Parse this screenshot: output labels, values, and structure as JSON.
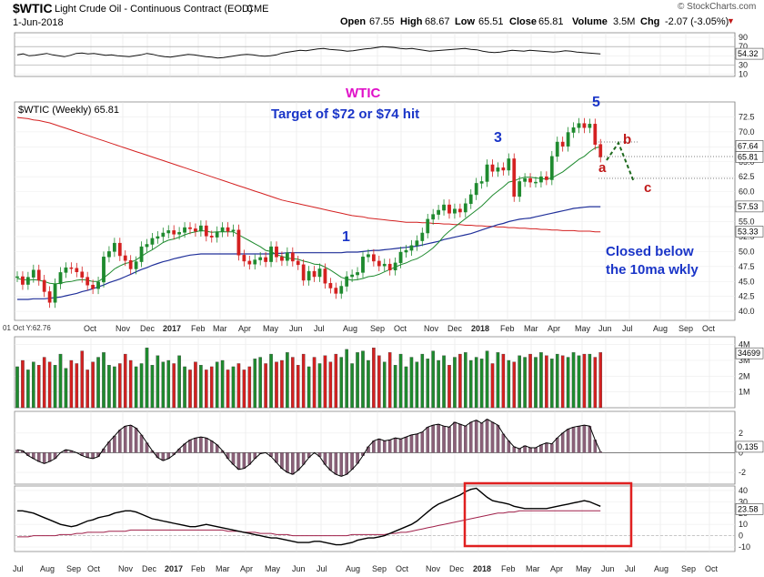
{
  "header": {
    "symbol": "$WTIC",
    "name": "Light Crude Oil - Continuous Contract (EOD)",
    "exchange": "CME",
    "date": "1-Jun-2018",
    "brand": "© StockCharts.com",
    "open_label": "Open",
    "open": "67.55",
    "high_label": "High",
    "high": "68.67",
    "low_label": "Low",
    "low": "65.51",
    "close_label": "Close",
    "close": "65.81",
    "volume_label": "Volume",
    "volume": "3.5M",
    "chg_label": "Chg",
    "chg": "-2.07 (-3.05%)"
  },
  "colors": {
    "up": "#1e8a2e",
    "down": "#d42020",
    "ma10": "#1e8a2e",
    "ma40": "#20309a",
    "ma200": "#d42020",
    "hist": "#8a6078",
    "annot": "#1a35c8",
    "wtic": "#e010c8",
    "wave": "#c01818",
    "box": "#e02020"
  },
  "chart_data": [
    {
      "type": "line",
      "panel": "rsi",
      "yticks": [
        10,
        30,
        50,
        70,
        90
      ],
      "last_value": "54.32",
      "ylim": [
        5,
        100
      ],
      "values": [
        52,
        54,
        50,
        51,
        53,
        55,
        52,
        50,
        48,
        51,
        55,
        56,
        54,
        55,
        53,
        51,
        52,
        50,
        49,
        48,
        50,
        52,
        55,
        53,
        50,
        48,
        47,
        49,
        51,
        53,
        52,
        50,
        48,
        47,
        45,
        46,
        48,
        50,
        52,
        53,
        52,
        50,
        49,
        50,
        52,
        56,
        58,
        60,
        62,
        61,
        63,
        65,
        66,
        64,
        63,
        62,
        60,
        61,
        63,
        65,
        66,
        68,
        70,
        69,
        68,
        66,
        65,
        66,
        64,
        62,
        60,
        61,
        62,
        63,
        64,
        65,
        66,
        64,
        63,
        60,
        58,
        57,
        58,
        60,
        62,
        61,
        60,
        62,
        61,
        60,
        59,
        58,
        59,
        61,
        60,
        58,
        57,
        56,
        55,
        54
      ]
    },
    {
      "type": "candlestick",
      "panel": "price",
      "label": "$WTIC (Weekly) 65.81",
      "yticks": [
        40,
        42.5,
        45,
        47.5,
        50,
        52.5,
        55,
        57.5,
        60,
        62.5,
        65,
        67.5,
        70,
        72.5
      ],
      "ylim": [
        38.5,
        75
      ],
      "last_labels": {
        "close": "65.81",
        "high": "67.64",
        "ma40": "57.53",
        "ma200": "53.33"
      },
      "close": [
        45.8,
        44.5,
        45.7,
        46.9,
        45.2,
        43.3,
        41.5,
        44.6,
        46.5,
        47.3,
        47.2,
        46.6,
        45.7,
        44.4,
        43.8,
        44.9,
        49.1,
        50.0,
        51.4,
        49.3,
        48.5,
        47.1,
        48.3,
        50.8,
        51.2,
        52.2,
        52.5,
        53.1,
        53.5,
        52.9,
        53.2,
        54.0,
        53.8,
        53.4,
        54.3,
        52.6,
        52.4,
        53.3,
        54.0,
        53.4,
        53.6,
        49.4,
        48.4,
        47.9,
        48.6,
        49.0,
        48.3,
        50.8,
        49.1,
        48.5,
        49.8,
        48.4,
        47.8,
        45.2,
        46.7,
        45.8,
        47.1,
        44.7,
        43.9,
        43.0,
        44.2,
        45.8,
        46.1,
        46.5,
        49.1,
        49.5,
        48.4,
        47.6,
        47.9,
        46.9,
        48.1,
        49.9,
        50.2,
        51.0,
        51.8,
        53.1,
        55.4,
        56.2,
        56.9,
        57.8,
        56.4,
        57.1,
        56.6,
        58.0,
        59.5,
        61.4,
        61.7,
        64.5,
        63.4,
        64.0,
        63.6,
        65.5,
        59.2,
        61.7,
        62.2,
        61.6,
        61.6,
        62.5,
        62.0,
        65.9,
        68.3,
        67.6,
        69.9,
        70.7,
        71.4,
        70.7,
        71.3,
        67.9,
        65.8
      ],
      "high_low_note": "high/low approximated from candle wicks",
      "ma10": [
        45.5,
        45.3,
        45.2,
        45.3,
        45.2,
        45.0,
        44.7,
        44.6,
        44.7,
        44.9,
        45.0,
        45.2,
        45.3,
        45.2,
        45.0,
        45.0,
        45.6,
        46.3,
        47.1,
        47.6,
        48.0,
        48.2,
        48.6,
        49.2,
        49.8,
        50.3,
        50.9,
        51.5,
        51.9,
        52.1,
        52.4,
        52.8,
        53.1,
        53.3,
        53.5,
        53.4,
        53.2,
        53.3,
        53.3,
        53.3,
        53.3,
        52.8,
        52.3,
        51.8,
        51.3,
        50.8,
        50.2,
        50.0,
        49.5,
        49.2,
        48.9,
        48.8,
        48.7,
        48.4,
        48.2,
        47.9,
        47.8,
        47.4,
        46.9,
        46.3,
        45.7,
        45.4,
        45.2,
        45.3,
        45.5,
        45.8,
        45.9,
        46.2,
        46.6,
        47.0,
        47.4,
        47.8,
        48.1,
        48.5,
        48.8,
        49.3,
        49.9,
        50.6,
        51.5,
        52.6,
        53.4,
        54.1,
        54.8,
        55.5,
        56.2,
        56.9,
        57.6,
        58.5,
        59.4,
        60.1,
        60.8,
        61.6,
        61.8,
        62.2,
        62.4,
        62.4,
        62.3,
        62.2,
        62.1,
        62.3,
        62.8,
        63.3,
        64.0,
        64.7,
        65.4,
        65.9,
        66.7,
        67.3,
        67.5
      ],
      "ma40": [
        42.0,
        42.0,
        42.0,
        42.1,
        42.1,
        42.1,
        42.2,
        42.3,
        42.4,
        42.6,
        42.8,
        43.0,
        43.3,
        43.5,
        43.8,
        44.1,
        44.4,
        44.8,
        45.1,
        45.4,
        45.8,
        46.2,
        46.6,
        47.0,
        47.3,
        47.7,
        48.0,
        48.3,
        48.5,
        48.8,
        49.0,
        49.2,
        49.4,
        49.5,
        49.6,
        49.6,
        49.6,
        49.6,
        49.6,
        49.6,
        49.6,
        49.6,
        49.6,
        49.6,
        49.6,
        49.6,
        49.6,
        49.6,
        49.7,
        49.7,
        49.8,
        49.8,
        49.8,
        49.8,
        49.8,
        49.8,
        49.8,
        49.8,
        49.8,
        49.8,
        49.8,
        49.9,
        49.9,
        49.9,
        50.0,
        50.1,
        50.2,
        50.2,
        50.3,
        50.4,
        50.5,
        50.6,
        50.7,
        50.8,
        50.9,
        51.1,
        51.3,
        51.5,
        51.7,
        52.0,
        52.2,
        52.4,
        52.6,
        52.8,
        53.0,
        53.3,
        53.6,
        53.9,
        54.2,
        54.5,
        54.7,
        55.0,
        55.2,
        55.4,
        55.5,
        55.6,
        55.8,
        56.0,
        56.2,
        56.4,
        56.6,
        56.8,
        57.0,
        57.2,
        57.3,
        57.4,
        57.5,
        57.5,
        57.5
      ],
      "ma200": [
        72.4,
        72.3,
        72.2,
        72.0,
        71.9,
        71.7,
        71.5,
        71.2,
        70.9,
        70.6,
        70.3,
        70.0,
        69.7,
        69.4,
        69.1,
        68.8,
        68.5,
        68.2,
        67.9,
        67.6,
        67.3,
        67.0,
        66.7,
        66.4,
        66.1,
        65.8,
        65.5,
        65.2,
        64.9,
        64.6,
        64.3,
        64.0,
        63.7,
        63.4,
        63.1,
        62.8,
        62.5,
        62.2,
        61.9,
        61.6,
        61.3,
        61.0,
        60.7,
        60.4,
        60.1,
        59.8,
        59.5,
        59.2,
        58.9,
        58.6,
        58.4,
        58.2,
        58.0,
        57.8,
        57.6,
        57.4,
        57.2,
        57.0,
        56.8,
        56.6,
        56.4,
        56.2,
        56.0,
        55.9,
        55.8,
        55.6,
        55.5,
        55.4,
        55.3,
        55.2,
        55.1,
        55.0,
        54.9,
        54.9,
        54.9,
        54.8,
        54.8,
        54.7,
        54.7,
        54.6,
        54.6,
        54.5,
        54.5,
        54.4,
        54.4,
        54.3,
        54.3,
        54.2,
        54.2,
        54.1,
        54.1,
        54.0,
        54.0,
        53.9,
        53.9,
        53.8,
        53.8,
        53.7,
        53.7,
        53.6,
        53.6,
        53.5,
        53.5,
        53.5,
        53.4,
        53.4,
        53.4,
        53.3,
        53.3
      ],
      "annotations": {
        "wtic": "WTIC",
        "target": "Target of $72 or $74 hit",
        "closed": "Closed below",
        "closed2": "the 10ma wkly",
        "wave1": "1",
        "wave3": "3",
        "wave5": "5",
        "wave_a": "a",
        "wave_b": "b",
        "wave_c": "c"
      },
      "xaxis_label": "01 Oct Y:62.76",
      "xticks": [
        "Oct",
        "Nov",
        "Dec",
        "2017",
        "Feb",
        "Mar",
        "Apr",
        "May",
        "Jun",
        "Jul",
        "Aug",
        "Sep",
        "Oct",
        "Nov",
        "Dec",
        "2018",
        "Feb",
        "Mar",
        "Apr",
        "May",
        "Jun",
        "Jul",
        "Aug",
        "Sep",
        "Oct"
      ]
    },
    {
      "type": "bar",
      "panel": "volume",
      "yticks_labels": [
        "1M",
        "2M",
        "3M",
        "4M"
      ],
      "ylim": [
        0,
        4.5
      ],
      "last_value": "34699",
      "values": [
        2.6,
        3.0,
        2.4,
        2.9,
        2.7,
        3.2,
        2.9,
        2.7,
        3.4,
        2.5,
        3.0,
        2.8,
        3.6,
        2.4,
        2.9,
        3.2,
        3.5,
        2.7,
        2.6,
        2.8,
        3.4,
        3.0,
        2.6,
        2.8,
        3.8,
        2.7,
        3.3,
        2.9,
        3.0,
        2.8,
        3.3,
        2.6,
        2.4,
        2.9,
        2.7,
        2.4,
        2.6,
        2.9,
        3.0,
        2.4,
        2.6,
        2.8,
        2.4,
        2.6,
        3.1,
        3.2,
        2.8,
        3.4,
        2.9,
        3.0,
        3.5,
        3.2,
        2.7,
        3.4,
        2.6,
        3.2,
        2.8,
        3.3,
        2.9,
        3.4,
        3.2,
        3.7,
        2.8,
        3.5,
        3.6,
        3.0,
        3.8,
        3.3,
        2.9,
        3.5,
        2.7,
        3.4,
        2.6,
        3.2,
        2.9,
        3.4,
        3.1,
        3.6,
        3.0,
        3.3,
        2.7,
        3.2,
        3.4,
        3.5,
        3.0,
        3.2,
        3.1,
        3.6,
        2.8,
        3.5,
        3.4,
        3.0,
        2.9,
        3.3,
        3.2,
        3.4,
        3.2,
        3.5,
        3.3,
        3.1,
        3.4,
        3.3,
        3.2,
        3.5,
        3.3,
        3.4,
        3.4,
        3.2,
        3.5
      ]
    },
    {
      "type": "bar",
      "panel": "macd-histogram",
      "yticks": [
        -2,
        0,
        2
      ],
      "ylim": [
        -3.2,
        4.2
      ],
      "last_value": "0.135",
      "values": [
        0.3,
        0.2,
        -0.3,
        -0.6,
        -0.9,
        -1.1,
        -0.9,
        -0.6,
        0.0,
        0.3,
        0.2,
        0.0,
        -0.3,
        -0.5,
        -0.6,
        -0.4,
        0.4,
        1.1,
        1.7,
        2.3,
        2.7,
        2.8,
        2.5,
        1.8,
        1.0,
        0.2,
        -0.5,
        -0.8,
        -0.6,
        -0.2,
        0.4,
        0.9,
        1.3,
        1.5,
        1.6,
        1.5,
        1.2,
        0.8,
        0.2,
        -0.6,
        -1.2,
        -1.7,
        -1.6,
        -1.2,
        -0.6,
        -0.1,
        0.0,
        -0.4,
        -1.0,
        -1.6,
        -2.0,
        -2.2,
        -1.8,
        -1.2,
        -0.5,
        0.0,
        -0.4,
        -1.2,
        -1.8,
        -2.2,
        -2.4,
        -2.2,
        -1.7,
        -1.1,
        -0.3,
        0.6,
        1.2,
        1.4,
        1.2,
        1.3,
        1.5,
        1.4,
        1.6,
        1.8,
        1.9,
        2.1,
        2.6,
        2.8,
        2.9,
        2.7,
        2.6,
        3.1,
        2.9,
        2.7,
        3.1,
        3.3,
        3.0,
        3.4,
        3.1,
        2.8,
        1.9,
        1.2,
        0.6,
        0.4,
        0.7,
        0.5,
        0.5,
        0.8,
        1.0,
        0.9,
        1.5,
        2.0,
        2.4,
        2.6,
        2.7,
        2.8,
        2.7,
        1.3,
        0.1
      ]
    },
    {
      "type": "line",
      "panel": "adx",
      "yticks": [
        -10,
        0,
        10,
        20,
        30,
        40
      ],
      "ylim": [
        -14,
        44
      ],
      "last_value": "23.58",
      "values": [
        22,
        22,
        21,
        20,
        18,
        16,
        14,
        12,
        10,
        9,
        8,
        9,
        11,
        13,
        14,
        16,
        17,
        18,
        20,
        21,
        22,
        22,
        21,
        19,
        17,
        15,
        14,
        13,
        12,
        11,
        10,
        9,
        8,
        8,
        9,
        10,
        9,
        8,
        7,
        6,
        5,
        4,
        3,
        2,
        1,
        0,
        -1,
        -2,
        -2,
        -3,
        -4,
        -5,
        -6,
        -6,
        -6,
        -5,
        -5,
        -6,
        -7,
        -8,
        -8,
        -7,
        -6,
        -4,
        -3,
        -2,
        -2,
        -1,
        0,
        2,
        4,
        6,
        8,
        10,
        13,
        17,
        21,
        25,
        28,
        30,
        32,
        34,
        36,
        39,
        41,
        42,
        38,
        34,
        31,
        30,
        29,
        28,
        26,
        25,
        24,
        24,
        24,
        24,
        24,
        25,
        26,
        27,
        28,
        29,
        30,
        31,
        30,
        28,
        26
      ],
      "values2": [
        -1,
        -1,
        -1,
        0,
        0,
        0,
        0,
        0,
        1,
        1,
        1,
        2,
        2,
        3,
        3,
        3,
        3,
        4,
        4,
        4,
        4,
        5,
        5,
        5,
        5,
        5,
        5,
        5,
        5,
        5,
        5,
        5,
        5,
        5,
        5,
        5,
        5,
        5,
        5,
        4,
        4,
        4,
        3,
        3,
        3,
        2,
        2,
        2,
        1,
        1,
        1,
        0,
        0,
        0,
        0,
        0,
        0,
        0,
        0,
        0,
        0,
        0,
        1,
        1,
        1,
        1,
        1,
        1,
        1,
        2,
        2,
        3,
        3,
        4,
        5,
        6,
        7,
        8,
        9,
        10,
        11,
        12,
        13,
        14,
        15,
        16,
        17,
        18,
        19,
        20,
        20,
        21,
        21,
        22,
        22,
        22,
        22,
        22,
        22,
        22,
        22,
        22,
        22,
        22,
        22,
        22,
        22,
        22,
        22
      ],
      "xticks": [
        "Jul",
        "Aug",
        "Sep",
        "Oct",
        "Nov",
        "Dec",
        "2017",
        "Feb",
        "Mar",
        "Apr",
        "May",
        "Jun",
        "Jul",
        "Aug",
        "Sep",
        "Oct",
        "Nov",
        "Dec",
        "2018",
        "Feb",
        "Mar",
        "Apr",
        "May",
        "Jun",
        "Jul",
        "Aug",
        "Sep",
        "Oct"
      ]
    }
  ]
}
